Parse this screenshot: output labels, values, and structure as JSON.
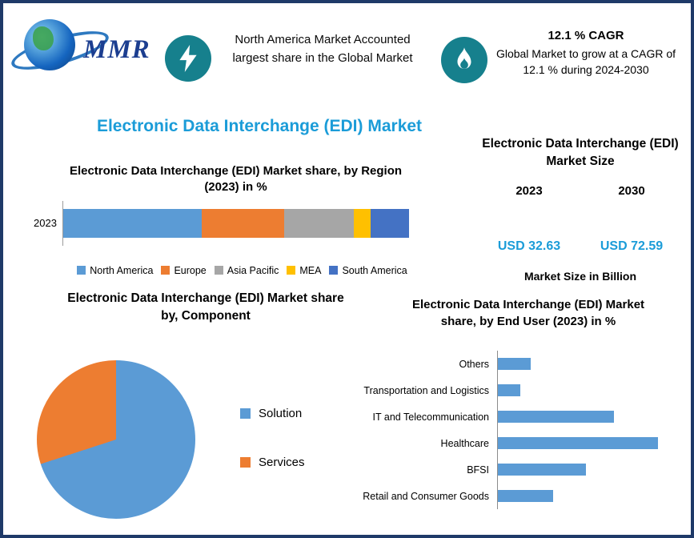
{
  "colors": {
    "frame_border": "#1f3a68",
    "accent_blue": "#1b9cd8",
    "badge_teal": "#16808d",
    "bar_blue": "#5b9bd5",
    "bar_orange": "#ed7d31",
    "bar_gray": "#a6a6a6",
    "bar_yellow": "#ffc000",
    "bar_navy": "#4472c4"
  },
  "header": {
    "logo_text": "MMR",
    "highlight_share": {
      "icon": "lightning-icon",
      "text": "North America Market Accounted largest share in the Global Market"
    },
    "highlight_cagr": {
      "icon": "flame-icon",
      "title": "12.1 % CAGR",
      "text": "Global Market to grow at a CAGR of 12.1 % during 2024-2030"
    }
  },
  "main_title": "Electronic Data Interchange (EDI) Market",
  "chart_data": [
    {
      "id": "region_share",
      "type": "bar",
      "subtype": "stacked-horizontal",
      "title": "Electronic Data Interchange (EDI) Market share, by Region (2023) in %",
      "categories": [
        "2023"
      ],
      "series": [
        {
          "name": "North America",
          "color": "#5b9bd5",
          "values": [
            40
          ]
        },
        {
          "name": "Europe",
          "color": "#ed7d31",
          "values": [
            24
          ]
        },
        {
          "name": "Asia Pacific",
          "color": "#a6a6a6",
          "values": [
            20
          ]
        },
        {
          "name": "MEA",
          "color": "#ffc000",
          "values": [
            5
          ]
        },
        {
          "name": "South America",
          "color": "#4472c4",
          "values": [
            11
          ]
        }
      ],
      "xlim": [
        0,
        100
      ],
      "legend_position": "bottom",
      "grid": false
    },
    {
      "id": "market_size",
      "type": "table",
      "title": "Electronic Data Interchange (EDI) Market Size",
      "columns": [
        "2023",
        "2030"
      ],
      "values": [
        "USD 32.63",
        "USD 72.59"
      ],
      "footer": "Market Size in Billion"
    },
    {
      "id": "component_share",
      "type": "pie",
      "title": "Electronic Data Interchange (EDI) Market share by, Component",
      "labels": [
        "Solution",
        "Services"
      ],
      "values": [
        70,
        30
      ],
      "colors": [
        "#5b9bd5",
        "#ed7d31"
      ],
      "legend_position": "right"
    },
    {
      "id": "end_user_share",
      "type": "bar",
      "subtype": "horizontal",
      "title": "Electronic Data Interchange (EDI) Market share, by End User (2023) in %",
      "categories": [
        "Others",
        "Transportation and Logistics",
        "IT and Telecommunication",
        "Healthcare",
        "BFSI",
        "Retail and Consumer Goods"
      ],
      "values": [
        6,
        4,
        21,
        29,
        16,
        10
      ],
      "color": "#5b9bd5",
      "xlim": [
        0,
        30
      ],
      "grid": false
    }
  ]
}
